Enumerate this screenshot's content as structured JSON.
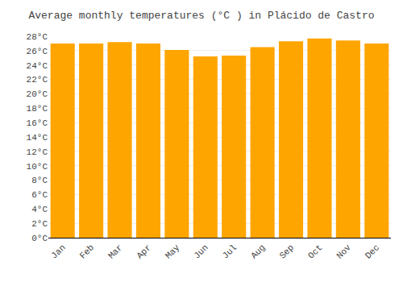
{
  "chart_data": {
    "type": "bar",
    "title": "Average monthly temperatures (°C ) in Plácido de Castro",
    "categories": [
      "Jan",
      "Feb",
      "Mar",
      "Apr",
      "May",
      "Jun",
      "Jul",
      "Aug",
      "Sep",
      "Oct",
      "Nov",
      "Dec"
    ],
    "values": [
      27.0,
      27.0,
      27.2,
      27.0,
      26.1,
      25.2,
      25.3,
      26.5,
      27.3,
      27.7,
      27.4,
      27.0
    ],
    "color": "#FFA500",
    "ylim": [
      0,
      28
    ],
    "yticks": [
      {
        "value": 0,
        "label": "0°C"
      },
      {
        "value": 2,
        "label": "2°C"
      },
      {
        "value": 4,
        "label": "4°C"
      },
      {
        "value": 6,
        "label": "6°C"
      },
      {
        "value": 8,
        "label": "8°C"
      },
      {
        "value": 10,
        "label": "10°C"
      },
      {
        "value": 12,
        "label": "12°C"
      },
      {
        "value": 14,
        "label": "14°C"
      },
      {
        "value": 16,
        "label": "16°C"
      },
      {
        "value": 18,
        "label": "18°C"
      },
      {
        "value": 20,
        "label": "20°C"
      },
      {
        "value": 22,
        "label": "22°C"
      },
      {
        "value": 24,
        "label": "24°C"
      },
      {
        "value": 26,
        "label": "26°C"
      },
      {
        "value": 28,
        "label": "28°C"
      }
    ],
    "grid": true
  }
}
